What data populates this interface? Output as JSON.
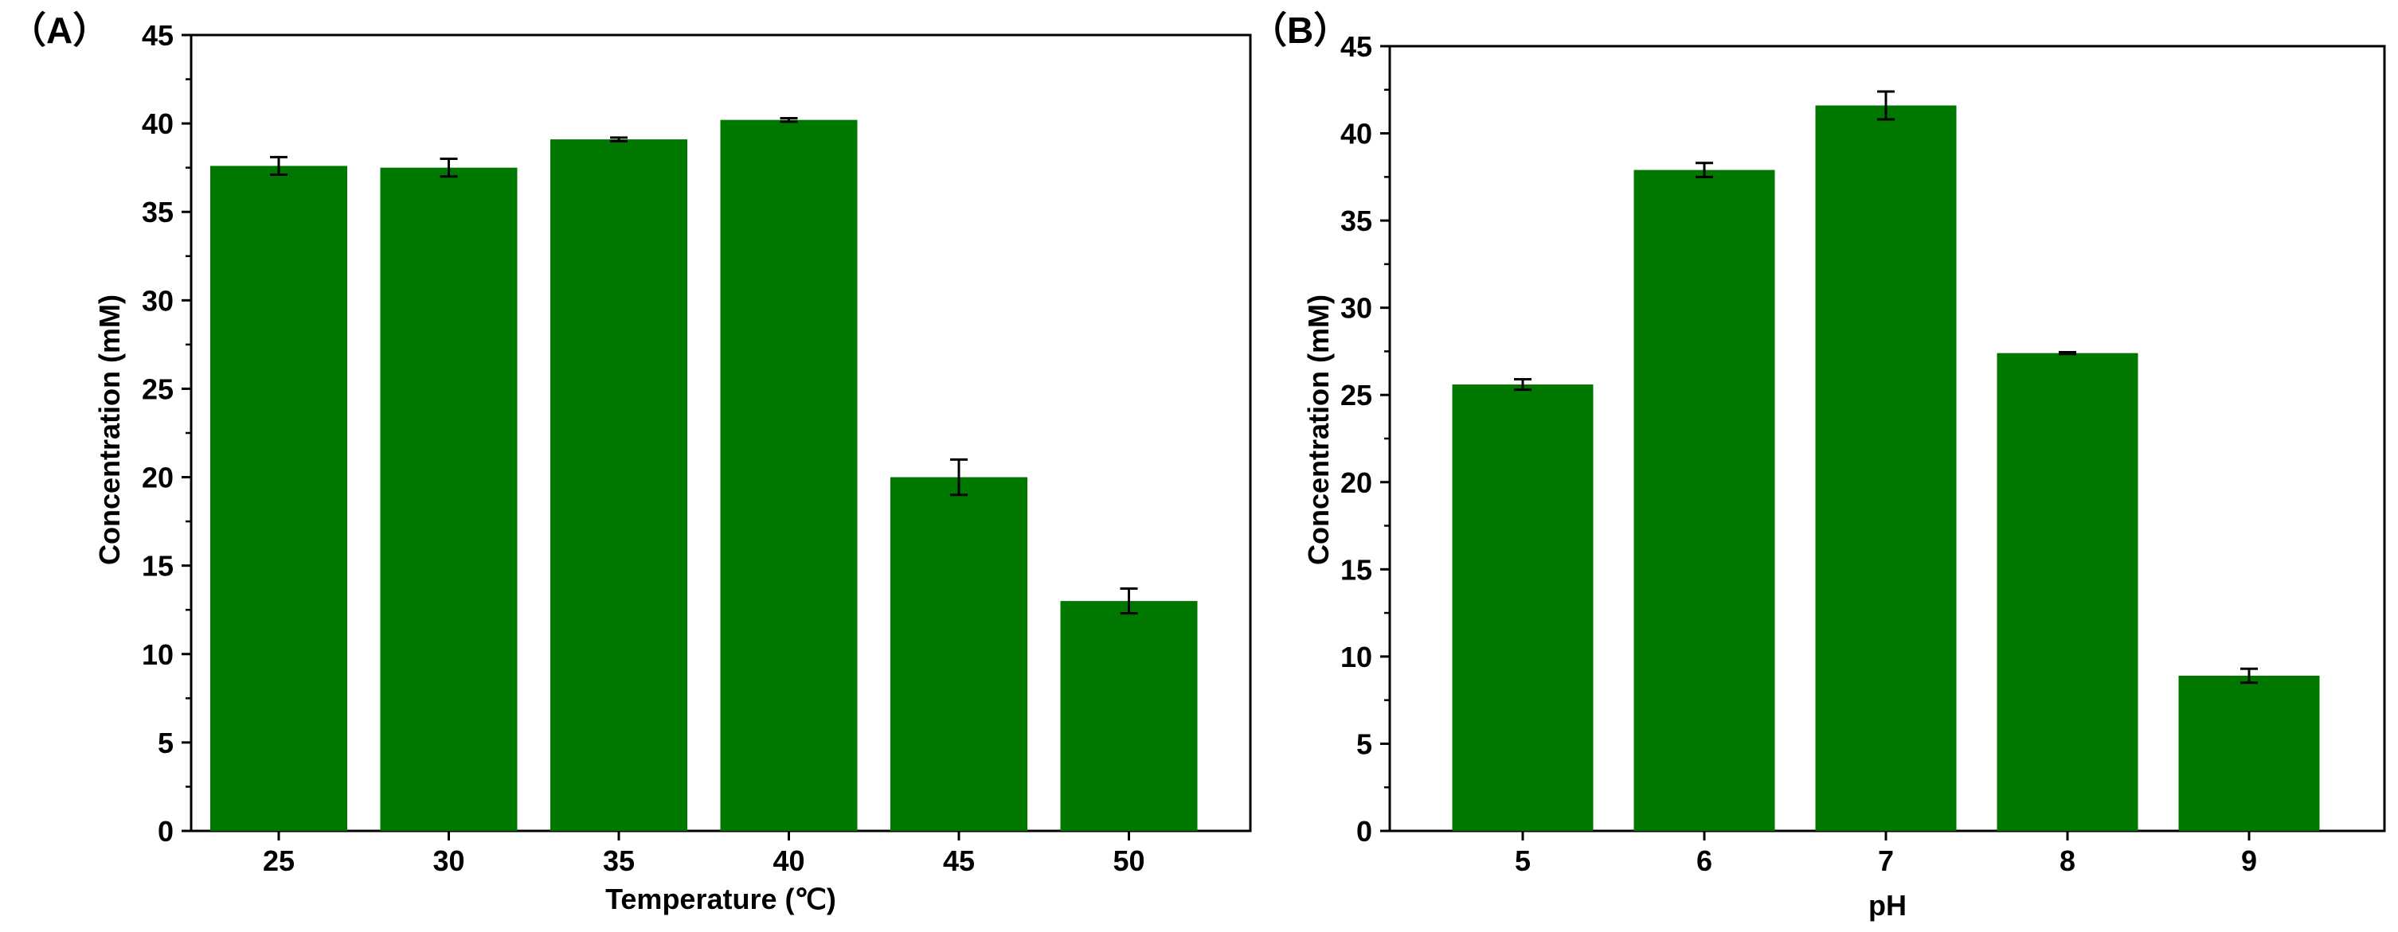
{
  "chart_data": [
    {
      "type": "bar",
      "panel_label": "（A）",
      "title": "",
      "xlabel": "Temperature (℃)",
      "ylabel": "Concentration (mM)",
      "categories": [
        "25",
        "30",
        "35",
        "40",
        "45",
        "50"
      ],
      "values": [
        37.6,
        37.5,
        39.1,
        40.2,
        20.0,
        13.0
      ],
      "errors": [
        0.5,
        0.5,
        0.1,
        0.1,
        1.0,
        0.7
      ],
      "ylim": [
        0,
        45
      ],
      "yticks": [
        "0",
        "5",
        "10",
        "15",
        "20",
        "25",
        "30",
        "35",
        "40",
        "45"
      ],
      "bar_color": "#007800",
      "grid": false
    },
    {
      "type": "bar",
      "panel_label": "（B）",
      "title": "",
      "xlabel": "pH",
      "ylabel": "Concentration (mM)",
      "categories": [
        "5",
        "6",
        "7",
        "8",
        "9"
      ],
      "values": [
        25.6,
        37.9,
        41.6,
        27.4,
        8.9
      ],
      "errors": [
        0.3,
        0.4,
        0.8,
        0.05,
        0.4
      ],
      "ylim": [
        0,
        45
      ],
      "yticks": [
        "0",
        "5",
        "10",
        "15",
        "20",
        "25",
        "30",
        "35",
        "40",
        "45"
      ],
      "bar_color": "#007800",
      "grid": false
    }
  ]
}
